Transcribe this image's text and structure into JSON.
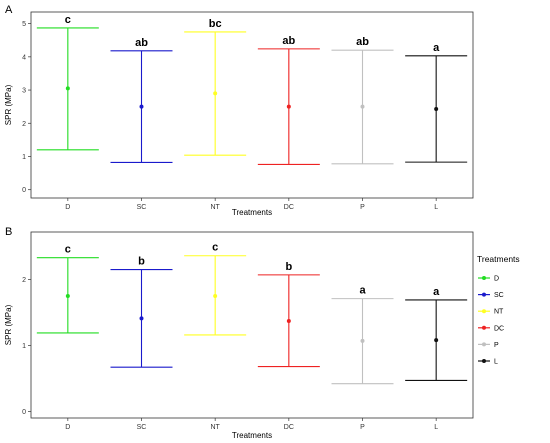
{
  "legend": {
    "title": "Treatments",
    "items": [
      {
        "name": "D",
        "color": "#22dd22"
      },
      {
        "name": "SC",
        "color": "#1a1acc"
      },
      {
        "name": "NT",
        "color": "#ffff22"
      },
      {
        "name": "DC",
        "color": "#ee2222"
      },
      {
        "name": "P",
        "color": "#c0c0c0"
      },
      {
        "name": "L",
        "color": "#111111"
      }
    ]
  },
  "chart_data": [
    {
      "panel": "A",
      "type": "errorbar",
      "xlabel": "Treatments",
      "ylabel": "SPR (MPa)",
      "ylim": [
        -0.25,
        5.35
      ],
      "yticks": [
        0,
        1,
        2,
        3,
        4,
        5
      ],
      "categories": [
        "D",
        "SC",
        "NT",
        "DC",
        "P",
        "L"
      ],
      "colors": [
        "#22dd22",
        "#1a1acc",
        "#ffff22",
        "#ee2222",
        "#c0c0c0",
        "#111111"
      ],
      "means": [
        3.05,
        2.5,
        2.9,
        2.5,
        2.5,
        2.43
      ],
      "lower": [
        1.2,
        0.82,
        1.04,
        0.76,
        0.78,
        0.83
      ],
      "upper": [
        4.87,
        4.18,
        4.75,
        4.24,
        4.2,
        4.03
      ],
      "letters": [
        "c",
        "ab",
        "bc",
        "ab",
        "ab",
        "a"
      ]
    },
    {
      "panel": "B",
      "type": "errorbar",
      "xlabel": "Treatments",
      "ylabel": "SPR (MPa)",
      "ylim": [
        -0.1,
        2.72
      ],
      "yticks": [
        0,
        1,
        2
      ],
      "categories": [
        "D",
        "SC",
        "NT",
        "DC",
        "P",
        "L"
      ],
      "colors": [
        "#22dd22",
        "#1a1acc",
        "#ffff22",
        "#ee2222",
        "#c0c0c0",
        "#111111"
      ],
      "means": [
        1.75,
        1.41,
        1.75,
        1.37,
        1.07,
        1.08
      ],
      "lower": [
        1.19,
        0.67,
        1.16,
        0.68,
        0.42,
        0.47
      ],
      "upper": [
        2.33,
        2.15,
        2.36,
        2.07,
        1.71,
        1.69
      ],
      "letters": [
        "c",
        "b",
        "c",
        "b",
        "a",
        "a"
      ]
    }
  ]
}
